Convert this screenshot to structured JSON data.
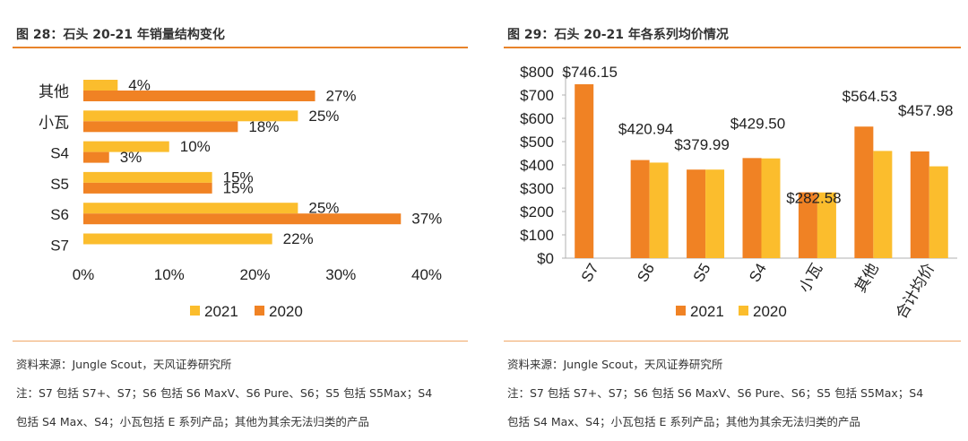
{
  "colors": {
    "c2021": "#fbbd2d",
    "c2020": "#f08224",
    "rule": "#e8832a"
  },
  "left": {
    "title": "图 28：石头 20-21 年销量结构变化",
    "source": "资料来源：Jungle Scout，天风证券研究所",
    "note_line1": "注：S7 包括 S7+、S7；S6 包括 S6 MaxV、S6 Pure、S6；S5 包括 S5Max；S4",
    "note_line2": "包括 S4 Max、S4；小瓦包括 E 系列产品；其他为其余无法归类的产品"
  },
  "right": {
    "title": "图 29：石头 20-21 年各系列均价情况",
    "source": "资料来源：Jungle Scout，天风证券研究所",
    "note_line1": "注：S7 包括 S7+、S7；S6 包括 S6 MaxV、S6 Pure、S6；S5 包括 S5Max；S4",
    "note_line2": "包括 S4 Max、S4；小瓦包括 E 系列产品；其他为其余无法归类的产品"
  },
  "chart_data": [
    {
      "type": "bar",
      "orientation": "horizontal",
      "title": "图 28：石头 20-21 年销量结构变化",
      "categories": [
        "其他",
        "小瓦",
        "S4",
        "S5",
        "S6",
        "S7"
      ],
      "series": [
        {
          "name": "2021",
          "values": [
            4,
            25,
            10,
            15,
            25,
            22
          ],
          "labels": [
            "4%",
            "25%",
            "10%",
            "15%",
            "25%",
            "22%"
          ]
        },
        {
          "name": "2020",
          "values": [
            27,
            18,
            3,
            15,
            37,
            null
          ],
          "labels": [
            "27%",
            "18%",
            "3%",
            "15%",
            "37%",
            ""
          ]
        }
      ],
      "xlim": [
        0,
        40
      ],
      "xticks": [
        "0%",
        "10%",
        "20%",
        "30%",
        "40%"
      ],
      "legend": [
        "2021",
        "2020"
      ],
      "legend_position": "bottom"
    },
    {
      "type": "bar",
      "orientation": "vertical",
      "title": "图 29：石头 20-21 年各系列均价情况",
      "categories": [
        "S7",
        "S6",
        "S5",
        "S4",
        "小瓦",
        "其他",
        "合计均价"
      ],
      "series": [
        {
          "name": "2021",
          "values": [
            746.15,
            420.94,
            379.99,
            429.5,
            282.58,
            564.53,
            457.98
          ]
        },
        {
          "name": "2020",
          "values": [
            null,
            410,
            380,
            428,
            282,
            460,
            394
          ]
        }
      ],
      "data_labels": [
        "$746.15",
        "$420.94",
        "$379.99",
        "$429.50",
        "$282.58",
        "$564.53",
        "$457.98"
      ],
      "ylim": [
        0,
        800
      ],
      "yticks": [
        "$0",
        "$100",
        "$200",
        "$300",
        "$400",
        "$500",
        "$600",
        "$700",
        "$800"
      ],
      "legend": [
        "2021",
        "2020"
      ],
      "legend_position": "bottom"
    }
  ]
}
